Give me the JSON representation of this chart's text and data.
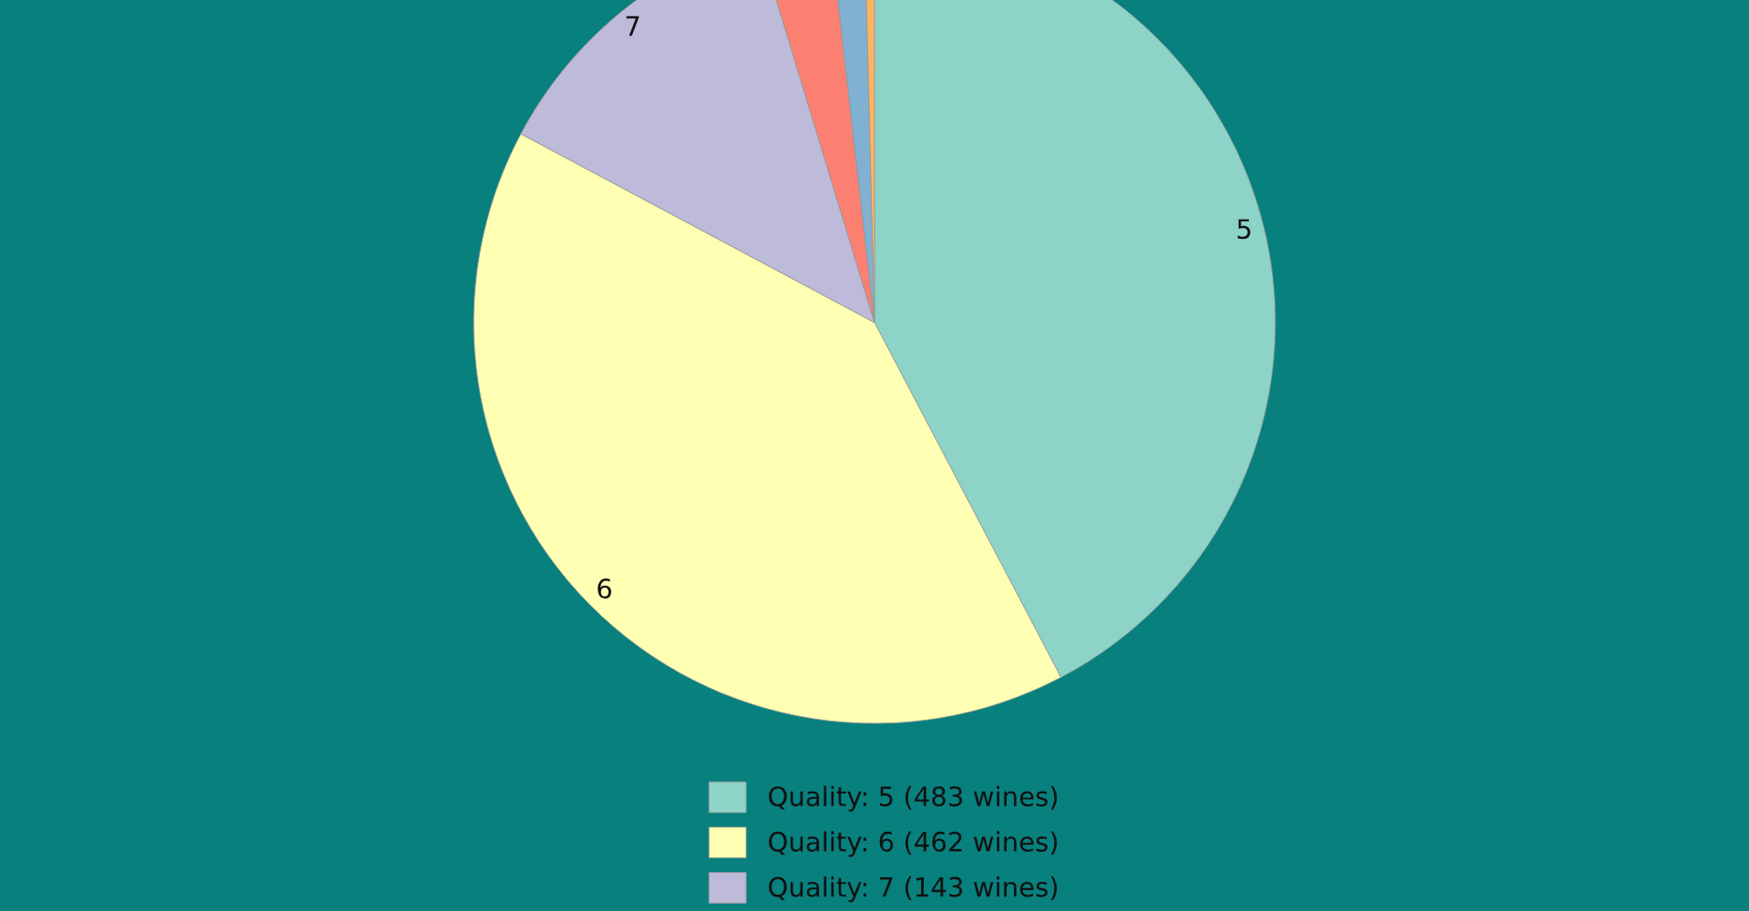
{
  "chart_data": {
    "type": "pie",
    "categories": [
      "Quality: 5 (483 wines)",
      "Quality: 6 (462 wines)",
      "Quality: 7 (143 wines)",
      null,
      null,
      null
    ],
    "values": [
      42.3,
      40.5,
      12.5,
      2.9,
      1.4,
      0.4
    ],
    "colors": [
      "#8dd3c7",
      "#ffffb3",
      "#bebada",
      "#fb8072",
      "#80b1d3",
      "#fdb462"
    ],
    "legend": "bottom",
    "annotations": [
      "5",
      "6",
      "7"
    ]
  }
}
